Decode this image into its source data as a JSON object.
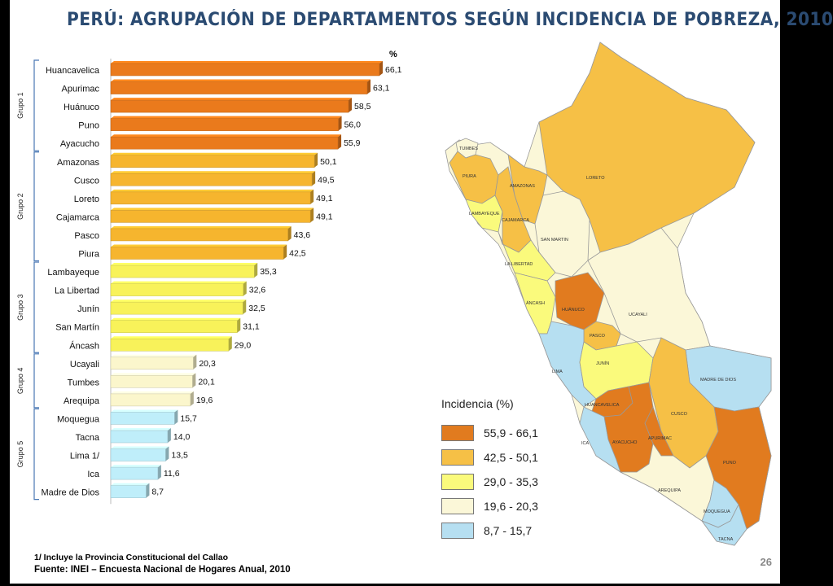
{
  "title": "PERÚ: AGRUPACIÓN DE DEPARTAMENTOS SEGÚN INCIDENCIA DE POBREZA, 2010",
  "chart_data": {
    "type": "bar",
    "orientation": "horizontal",
    "unit_label": "%",
    "categories": [
      "Huancavelica",
      "Apurimac",
      "Huánuco",
      "Puno",
      "Ayacucho",
      "Amazonas",
      "Cusco",
      "Loreto",
      "Cajamarca",
      "Pasco",
      "Piura",
      "Lambayeque",
      "La Libertad",
      "Junín",
      "San Martín",
      "Áncash",
      "Ucayali",
      "Tumbes",
      "Arequipa",
      "Moquegua",
      "Tacna",
      "Lima 1/",
      "Ica",
      "Madre de Dios"
    ],
    "values": [
      66.1,
      63.1,
      58.5,
      56.0,
      55.9,
      50.1,
      49.5,
      49.1,
      49.1,
      43.6,
      42.5,
      35.3,
      32.6,
      32.5,
      31.1,
      29.0,
      20.3,
      20.1,
      19.6,
      15.7,
      14.0,
      13.5,
      11.6,
      8.7
    ],
    "value_labels": [
      "66,1",
      "63,1",
      "58,5",
      "56,0",
      "55,9",
      "50,1",
      "49,5",
      "49,1",
      "49,1",
      "43,6",
      "42,5",
      "35,3",
      "32,6",
      "32,5",
      "31,1",
      "29,0",
      "20,3",
      "20,1",
      "19,6",
      "15,7",
      "14,0",
      "13,5",
      "11,6",
      "8,7"
    ],
    "groups": [
      {
        "name": "Grupo 1",
        "start": 0,
        "end": 4,
        "color": "#ea7a1c"
      },
      {
        "name": "Grupo 2",
        "start": 5,
        "end": 10,
        "color": "#f6b52e"
      },
      {
        "name": "Grupo 3",
        "start": 11,
        "end": 15,
        "color": "#f8f25a"
      },
      {
        "name": "Grupo 4",
        "start": 16,
        "end": 18,
        "color": "#fbf6cc"
      },
      {
        "name": "Grupo 5",
        "start": 19,
        "end": 23,
        "color": "#bfeefa"
      }
    ],
    "xlim": [
      0,
      66.1
    ]
  },
  "legend": {
    "title": "Incidencia (%)",
    "items": [
      {
        "label": "55,9 - 66,1",
        "color": "#e17b1f"
      },
      {
        "label": "42,5 - 50,1",
        "color": "#f6c046"
      },
      {
        "label": "29,0 - 35,3",
        "color": "#fafa7c"
      },
      {
        "label": "19,6 - 20,3",
        "color": "#fbf7d8"
      },
      {
        "label": "8,7 - 15,7",
        "color": "#b6dff1"
      }
    ]
  },
  "map_labels": {
    "tumbes": "TUMBES",
    "piura": "PIURA",
    "lambayeque": "LAMBAYEQUE",
    "amazonas": "AMAZONAS",
    "cajamarca": "CAJAMARCA",
    "loreto": "LORETO",
    "sanmartin": "SAN MARTIN",
    "lalibertad": "LA LIBERTAD",
    "ancash": "ÁNCASH",
    "huanuco": "HUÁNUCO",
    "ucayali": "UCAYALI",
    "pasco": "PASCO",
    "lima": "LIMA",
    "junin": "JUNÍN",
    "madrededios": "MADRE DE DIOS",
    "huancavelica": "HUANCAVELICA",
    "cusco": "CUSCO",
    "ica": "ICA",
    "ayacucho": "AYACUCHO",
    "apurimac": "APURIMAC",
    "puno": "PUNO",
    "arequipa": "AREQUIPA",
    "moquegua": "MOQUEGUA",
    "tacna": "TACNA"
  },
  "footnote": "1/ Incluye la Provincia Constitucional del Callao",
  "source": "Fuente: INEI – Encuesta Nacional de Hogares Anual, 2010",
  "page_number": "26"
}
